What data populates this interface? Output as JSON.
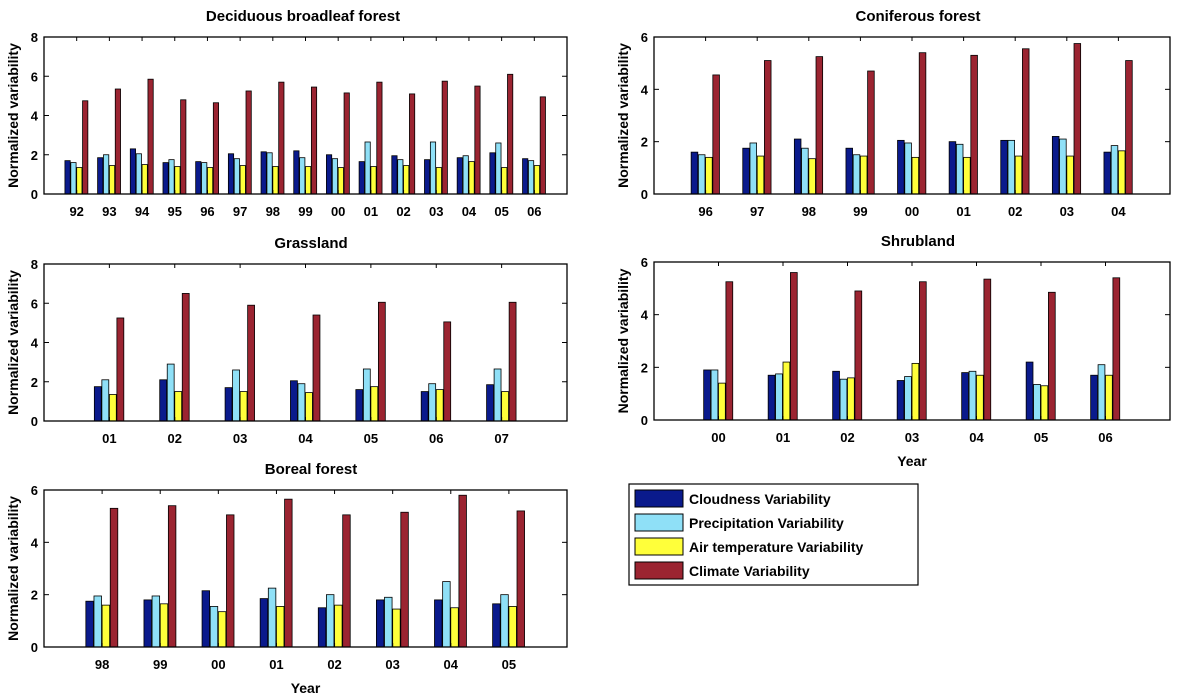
{
  "colors": {
    "cloudness": "#0a1a8c",
    "precipitation": "#8fe0f7",
    "air_temperature": "#ffff3a",
    "climate": "#9b2431"
  },
  "legend": {
    "cloudness": "Cloudness Variability",
    "precipitation": "Precipitation Variability",
    "air_temperature": "Air temperature Variability",
    "climate": "Climate Variability"
  },
  "chart_data": [
    {
      "type": "bar",
      "title": "Deciduous broadleaf forest",
      "xlabel": "",
      "ylabel": "Normalized variability",
      "ylim": [
        0,
        8
      ],
      "yticks": [
        0,
        2,
        4,
        6,
        8
      ],
      "categories": [
        "92",
        "93",
        "94",
        "95",
        "96",
        "97",
        "98",
        "99",
        "00",
        "01",
        "02",
        "03",
        "04",
        "05",
        "06"
      ],
      "series": [
        {
          "name": "Cloudness Variability",
          "values": [
            1.7,
            1.85,
            2.3,
            1.6,
            1.65,
            2.05,
            2.15,
            2.2,
            2.0,
            1.65,
            1.95,
            1.75,
            1.85,
            2.1,
            1.8
          ]
        },
        {
          "name": "Precipitation Variability",
          "values": [
            1.6,
            2.0,
            2.05,
            1.75,
            1.6,
            1.8,
            2.1,
            1.85,
            1.8,
            2.65,
            1.75,
            2.65,
            1.95,
            2.6,
            1.7
          ]
        },
        {
          "name": "Air temperature Variability",
          "values": [
            1.35,
            1.45,
            1.5,
            1.4,
            1.35,
            1.45,
            1.4,
            1.4,
            1.35,
            1.4,
            1.45,
            1.35,
            1.65,
            1.35,
            1.45
          ]
        },
        {
          "name": "Climate Variability",
          "values": [
            4.75,
            5.35,
            5.85,
            4.8,
            4.65,
            5.25,
            5.7,
            5.45,
            5.15,
            5.7,
            5.1,
            5.75,
            5.5,
            6.1,
            4.95
          ]
        }
      ]
    },
    {
      "type": "bar",
      "title": "Coniferous forest",
      "xlabel": "",
      "ylabel": "Normalized variability",
      "ylim": [
        0,
        6
      ],
      "yticks": [
        0,
        2,
        4,
        6
      ],
      "categories": [
        "96",
        "97",
        "98",
        "99",
        "00",
        "01",
        "02",
        "03",
        "04"
      ],
      "series": [
        {
          "name": "Cloudness Variability",
          "values": [
            1.6,
            1.75,
            2.1,
            1.75,
            2.05,
            2.0,
            2.05,
            2.2,
            1.6
          ]
        },
        {
          "name": "Precipitation Variability",
          "values": [
            1.5,
            1.95,
            1.75,
            1.5,
            1.95,
            1.9,
            2.05,
            2.1,
            1.85
          ]
        },
        {
          "name": "Air temperature Variability",
          "values": [
            1.4,
            1.45,
            1.35,
            1.45,
            1.4,
            1.4,
            1.45,
            1.45,
            1.65
          ]
        },
        {
          "name": "Climate Variability",
          "values": [
            4.55,
            5.1,
            5.25,
            4.7,
            5.4,
            5.3,
            5.55,
            5.75,
            5.1
          ]
        }
      ]
    },
    {
      "type": "bar",
      "title": "Grassland",
      "xlabel": "",
      "ylabel": "Normalized variability",
      "ylim": [
        0,
        8
      ],
      "yticks": [
        0,
        2,
        4,
        6,
        8
      ],
      "categories": [
        "01",
        "02",
        "03",
        "04",
        "05",
        "06",
        "07"
      ],
      "series": [
        {
          "name": "Cloudness Variability",
          "values": [
            1.75,
            2.1,
            1.7,
            2.05,
            1.6,
            1.5,
            1.85
          ]
        },
        {
          "name": "Precipitation Variability",
          "values": [
            2.1,
            2.9,
            2.6,
            1.9,
            2.65,
            1.9,
            2.65
          ]
        },
        {
          "name": "Air temperature Variability",
          "values": [
            1.35,
            1.5,
            1.5,
            1.45,
            1.75,
            1.6,
            1.5
          ]
        },
        {
          "name": "Climate Variability",
          "values": [
            5.25,
            6.5,
            5.9,
            5.4,
            6.05,
            5.05,
            6.05
          ]
        }
      ]
    },
    {
      "type": "bar",
      "title": "Shrubland",
      "xlabel": "Year",
      "ylabel": "Normalized variability",
      "ylim": [
        0,
        6
      ],
      "yticks": [
        0,
        2,
        4,
        6
      ],
      "categories": [
        "00",
        "01",
        "02",
        "03",
        "04",
        "05",
        "06"
      ],
      "series": [
        {
          "name": "Cloudness Variability",
          "values": [
            1.9,
            1.7,
            1.85,
            1.5,
            1.8,
            2.2,
            1.7
          ]
        },
        {
          "name": "Precipitation Variability",
          "values": [
            1.9,
            1.75,
            1.55,
            1.65,
            1.85,
            1.35,
            2.1
          ]
        },
        {
          "name": "Air temperature Variability",
          "values": [
            1.4,
            2.2,
            1.6,
            2.15,
            1.7,
            1.3,
            1.7
          ]
        },
        {
          "name": "Climate Variability",
          "values": [
            5.25,
            5.6,
            4.9,
            5.25,
            5.35,
            4.85,
            5.4
          ]
        }
      ]
    },
    {
      "type": "bar",
      "title": "Boreal forest",
      "xlabel": "Year",
      "ylabel": "Normalized variability",
      "ylim": [
        0,
        6
      ],
      "yticks": [
        0,
        2,
        4,
        6
      ],
      "categories": [
        "98",
        "99",
        "00",
        "01",
        "02",
        "03",
        "04",
        "05"
      ],
      "series": [
        {
          "name": "Cloudness Variability",
          "values": [
            1.75,
            1.8,
            2.15,
            1.85,
            1.5,
            1.8,
            1.8,
            1.65
          ]
        },
        {
          "name": "Precipitation Variability",
          "values": [
            1.95,
            1.95,
            1.55,
            2.25,
            2.0,
            1.9,
            2.5,
            2.0
          ]
        },
        {
          "name": "Air temperature Variability",
          "values": [
            1.6,
            1.65,
            1.35,
            1.55,
            1.6,
            1.45,
            1.5,
            1.55
          ]
        },
        {
          "name": "Climate Variability",
          "values": [
            5.3,
            5.4,
            5.05,
            5.65,
            5.05,
            5.15,
            5.8,
            5.2
          ]
        }
      ]
    }
  ]
}
